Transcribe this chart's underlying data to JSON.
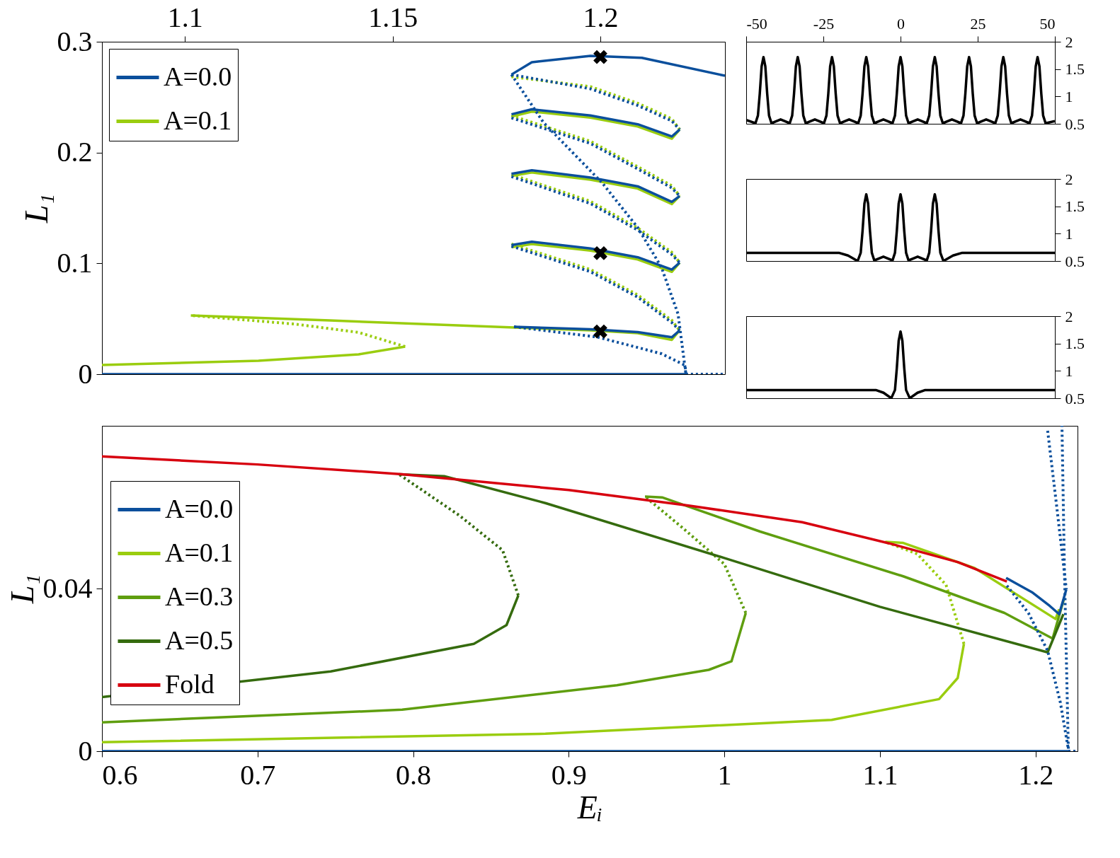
{
  "chart_data": [
    {
      "type": "line",
      "ylabel": "L₁",
      "xlim": [
        1.08,
        1.23
      ],
      "xticks": [
        1.1,
        1.15,
        1.2
      ],
      "ylim": [
        0,
        0.3
      ],
      "yticks": [
        0,
        0.1,
        0.2,
        0.3
      ],
      "legend": "top left",
      "grid": false,
      "series": [
        {
          "name": "A=0.0",
          "color": "#0b4f9c",
          "line_style": "solid",
          "x": [
            1.08,
            1.2206
          ],
          "values": [
            0,
            0
          ]
        },
        {
          "name": "A=0.1",
          "color": "#9acd0f",
          "line_style": "solid",
          "x": [
            1.08,
            1.1177,
            1.1418,
            1.153
          ],
          "values": [
            0.0083,
            0.0121,
            0.0179,
            0.0249
          ]
        },
        {
          "color": "#9acd0f",
          "line_style": "dotted",
          "x": [
            1.153,
            1.1418,
            1.1263,
            1.1014
          ],
          "values": [
            0.0249,
            0.0377,
            0.0453,
            0.053
          ]
        },
        {
          "color": "#9acd0f",
          "line_style": "solid",
          "x": [
            1.1014,
            1.1349,
            1.1792,
            1.1976,
            1.209,
            1.2172,
            1.2191
          ],
          "values": [
            0.053,
            0.0485,
            0.0421,
            0.0395,
            0.037,
            0.031,
            0.0396
          ]
        },
        {
          "color": "#9acd0f",
          "line_style": "dotted",
          "x": [
            1.1786,
            1.1976,
            1.209,
            1.2172,
            1.2191
          ],
          "values": [
            0.1175,
            0.0945,
            0.0715,
            0.0486,
            0.0396
          ]
        },
        {
          "color": "#9acd0f",
          "line_style": "solid",
          "x": [
            1.1786,
            1.1835,
            1.1976,
            1.209,
            1.2172,
            1.2191
          ],
          "values": [
            0.1145,
            0.1175,
            0.1115,
            0.1035,
            0.0924,
            0.1007
          ]
        },
        {
          "color": "#9acd0f",
          "line_style": "dotted",
          "x": [
            1.1786,
            1.1976,
            1.209,
            1.2172,
            1.2191
          ],
          "values": [
            0.1803,
            0.156,
            0.132,
            0.11,
            0.1007
          ]
        },
        {
          "color": "#9acd0f",
          "line_style": "solid",
          "x": [
            1.1786,
            1.1835,
            1.1976,
            1.209,
            1.2172,
            1.2191
          ],
          "values": [
            0.1788,
            0.182,
            0.1755,
            0.1675,
            0.1535,
            0.1608
          ]
        },
        {
          "color": "#9acd0f",
          "line_style": "dotted",
          "x": [
            1.1786,
            1.1976,
            1.209,
            1.2172,
            1.2191
          ],
          "values": [
            0.2333,
            0.2102,
            0.1872,
            0.1701,
            0.1608
          ]
        },
        {
          "color": "#9acd0f",
          "line_style": "solid",
          "x": [
            1.1786,
            1.1835,
            1.1976,
            1.209,
            1.2172,
            1.2191
          ],
          "values": [
            0.2325,
            0.237,
            0.2315,
            0.2235,
            0.2125,
            0.2208
          ]
        },
        {
          "color": "#9acd0f",
          "line_style": "dotted",
          "x": [
            1.1786,
            1.1976,
            1.209,
            1.2172,
            1.2191
          ],
          "values": [
            0.2684,
            0.2595,
            0.2445,
            0.2305,
            0.2208
          ]
        },
        {
          "color": "#0b4f9c",
          "line_style": "dotted",
          "x": [
            1.2206,
            1.23
          ],
          "values": [
            0,
            0
          ]
        },
        {
          "color": "#0b4f9c",
          "line_style": "solid",
          "x": [
            1.1792,
            1.1976,
            1.209,
            1.2172,
            1.2191
          ],
          "values": [
            0.0428,
            0.0405,
            0.038,
            0.0333,
            0.0396
          ]
        },
        {
          "color": "#0b4f9c",
          "line_style": "dotted",
          "x": [
            1.1786,
            1.1976,
            1.209,
            1.2172,
            1.2191
          ],
          "values": [
            0.1155,
            0.0925,
            0.0695,
            0.0466,
            0.0396
          ]
        },
        {
          "color": "#0b4f9c",
          "line_style": "solid",
          "x": [
            1.1786,
            1.1835,
            1.1976,
            1.209,
            1.2172,
            1.2191
          ],
          "values": [
            0.1165,
            0.1195,
            0.1135,
            0.1055,
            0.0944,
            0.1007
          ]
        },
        {
          "color": "#0b4f9c",
          "line_style": "dotted",
          "x": [
            1.1786,
            1.1976,
            1.209,
            1.2172,
            1.2191
          ],
          "values": [
            0.1783,
            0.154,
            0.13,
            0.108,
            0.1007
          ]
        },
        {
          "color": "#0b4f9c",
          "line_style": "solid",
          "x": [
            1.1786,
            1.1835,
            1.1976,
            1.209,
            1.2172,
            1.2191
          ],
          "values": [
            0.1808,
            0.184,
            0.1775,
            0.1695,
            0.1555,
            0.1608
          ]
        },
        {
          "color": "#0b4f9c",
          "line_style": "dotted",
          "x": [
            1.1786,
            1.1976,
            1.209,
            1.2172,
            1.2191
          ],
          "values": [
            0.2313,
            0.2082,
            0.1852,
            0.1681,
            0.1608
          ]
        },
        {
          "color": "#0b4f9c",
          "line_style": "solid",
          "x": [
            1.1786,
            1.1835,
            1.1976,
            1.209,
            1.2172,
            1.2191
          ],
          "values": [
            0.2345,
            0.239,
            0.2335,
            0.2255,
            0.2145,
            0.2208
          ]
        },
        {
          "color": "#0b4f9c",
          "line_style": "dotted",
          "x": [
            1.1786,
            1.1976,
            1.209,
            1.2172,
            1.2191
          ],
          "values": [
            0.2704,
            0.2575,
            0.2425,
            0.2285,
            0.2208
          ]
        },
        {
          "color": "#0b4f9c",
          "line_style": "solid",
          "x": [
            1.1786,
            1.1835,
            1.1976,
            1.21,
            1.23
          ],
          "values": [
            0.2704,
            0.2815,
            0.2872,
            0.2855,
            0.2693
          ]
        },
        {
          "color": "#0b4f9c",
          "line_style": "dotted",
          "x": [
            1.1786,
            1.1863,
            1.2005,
            1.209,
            1.2147,
            1.2187,
            1.2206
          ],
          "values": [
            0.2704,
            0.2271,
            0.1724,
            0.1323,
            0.0965,
            0.0544,
            0
          ]
        },
        {
          "color": "#0b4f9c",
          "line_style": "dotted",
          "x": [
            1.1792,
            1.1993,
            1.2147,
            1.2204,
            1.2206
          ],
          "values": [
            0.0428,
            0.0335,
            0.0185,
            0.008,
            0
          ]
        },
        {
          "type": "scatter",
          "marker": "cross",
          "color": "#000000",
          "x": [
            1.2,
            1.2,
            1.2
          ],
          "values": [
            0.2862,
            0.1092,
            0.0386
          ]
        }
      ]
    },
    {
      "type": "line",
      "xlim": [
        -50,
        50
      ],
      "xticks": [
        -50,
        -25,
        0,
        25,
        50
      ],
      "ylim": [
        0.5,
        2
      ],
      "yticks": [
        0.5,
        1,
        1.5,
        2
      ],
      "grid": false,
      "series": [
        {
          "color": "#000000",
          "x": [
            -50,
            -47.0,
            -46.2,
            -45.6,
            -45.0,
            -44.4,
            -43.8,
            -43.2,
            -42.6,
            -41.8,
            -38.85,
            -35.9,
            -35.1,
            -34.5,
            -33.9,
            -33.3,
            -32.7,
            -32.1,
            -31.5,
            -30.7,
            -27.75,
            -24.8,
            -24.0,
            -23.4,
            -22.8,
            -22.2,
            -21.6,
            -21.0,
            -20.4,
            -19.6,
            -16.65,
            -13.7,
            -12.9,
            -12.3,
            -11.7,
            -11.1,
            -10.5,
            -9.9,
            -9.3,
            -8.5,
            -5.55,
            -2.6,
            -1.8,
            -1.2,
            -0.6,
            0,
            0.6,
            1.2,
            1.8,
            2.6,
            5.55,
            8.5,
            9.3,
            9.9,
            10.5,
            11.1,
            11.7,
            12.3,
            12.9,
            13.7,
            16.65,
            19.6,
            20.4,
            21.0,
            21.6,
            22.2,
            22.8,
            23.4,
            24.0,
            24.8,
            27.75,
            30.7,
            31.5,
            32.1,
            32.7,
            33.3,
            33.9,
            34.5,
            35.1,
            35.9,
            38.85,
            41.8,
            42.6,
            43.2,
            43.8,
            44.4,
            45.0,
            45.6,
            46.2,
            47.0,
            50
          ],
          "values": [
            0.57,
            0.51,
            0.65,
            1.05,
            1.55,
            1.72,
            1.55,
            1.05,
            0.65,
            0.51,
            0.58,
            0.51,
            0.65,
            1.05,
            1.55,
            1.72,
            1.55,
            1.05,
            0.65,
            0.51,
            0.58,
            0.51,
            0.65,
            1.05,
            1.55,
            1.72,
            1.55,
            1.05,
            0.65,
            0.51,
            0.58,
            0.51,
            0.65,
            1.05,
            1.55,
            1.72,
            1.55,
            1.05,
            0.65,
            0.51,
            0.58,
            0.51,
            0.65,
            1.05,
            1.55,
            1.72,
            1.55,
            1.05,
            0.65,
            0.51,
            0.58,
            0.51,
            0.65,
            1.05,
            1.55,
            1.72,
            1.55,
            1.05,
            0.65,
            0.51,
            0.58,
            0.51,
            0.65,
            1.05,
            1.55,
            1.72,
            1.55,
            1.05,
            0.65,
            0.51,
            0.58,
            0.51,
            0.65,
            1.05,
            1.55,
            1.72,
            1.55,
            1.05,
            0.65,
            0.51,
            0.58,
            0.51,
            0.65,
            1.05,
            1.55,
            1.72,
            1.55,
            1.05,
            0.65,
            0.51,
            0.55
          ]
        }
      ]
    },
    {
      "type": "line",
      "xlim": [
        -50,
        50
      ],
      "xticks": [
        -50,
        -25,
        0,
        25,
        50
      ],
      "ylim": [
        0.5,
        2
      ],
      "yticks": [
        0.5,
        1,
        1.5,
        2
      ],
      "tick_labels": "y",
      "grid": false,
      "series": [
        {
          "color": "#000000",
          "x": [
            -50,
            -20,
            -17,
            -13.9,
            -12.9,
            -12.3,
            -11.7,
            -11.1,
            -10.5,
            -9.9,
            -9.3,
            -8.5,
            -5.55,
            -2.6,
            -1.8,
            -1.2,
            -0.6,
            0,
            0.6,
            1.2,
            1.8,
            2.6,
            5.55,
            8.5,
            9.3,
            9.9,
            10.5,
            11.1,
            11.7,
            12.3,
            12.9,
            13.9,
            17,
            20,
            50
          ],
          "values": [
            0.65,
            0.65,
            0.6,
            0.5,
            0.65,
            1.05,
            1.55,
            1.72,
            1.55,
            1.05,
            0.65,
            0.51,
            0.58,
            0.51,
            0.65,
            1.05,
            1.55,
            1.72,
            1.55,
            1.05,
            0.65,
            0.51,
            0.58,
            0.51,
            0.65,
            1.05,
            1.55,
            1.72,
            1.55,
            1.05,
            0.65,
            0.5,
            0.6,
            0.65,
            0.65
          ]
        }
      ]
    },
    {
      "type": "line",
      "xlim": [
        -50,
        50
      ],
      "xticks": [
        -50,
        -25,
        0,
        25,
        50
      ],
      "ylim": [
        0.5,
        2
      ],
      "yticks": [
        0.5,
        1,
        1.5,
        2
      ],
      "tick_labels": "y",
      "grid": false,
      "series": [
        {
          "color": "#000000",
          "x": [
            -50,
            -8,
            -5.5,
            -3.0,
            -1.8,
            -1.2,
            -0.6,
            0,
            0.6,
            1.2,
            1.8,
            3.0,
            5.5,
            8,
            50
          ],
          "values": [
            0.65,
            0.65,
            0.6,
            0.5,
            0.65,
            1.05,
            1.55,
            1.72,
            1.55,
            1.05,
            0.65,
            0.5,
            0.6,
            0.65,
            0.65
          ]
        }
      ]
    },
    {
      "type": "line",
      "xlabel": "Eᵢ",
      "ylabel": "L₁",
      "xlim": [
        0.6,
        1.227
      ],
      "xticks": [
        0.6,
        0.7,
        0.8,
        0.9,
        1,
        1.1,
        1.2
      ],
      "ylim": [
        0,
        0.08
      ],
      "yticks": [
        0,
        0.04
      ],
      "legend": "left",
      "grid": false,
      "series": [
        {
          "name": "A=0.0",
          "color": "#0b4f9c",
          "line_style": "solid",
          "x": [
            0.6,
            1.2211
          ],
          "values": [
            0,
            0
          ]
        },
        {
          "name": "A=0.1",
          "color": "#9acd0f",
          "line_style": "solid",
          "x": [
            0.6,
            0.885,
            1.069,
            1.138,
            1.15,
            1.154
          ],
          "values": [
            0.0022,
            0.0043,
            0.0077,
            0.0128,
            0.018,
            0.0264
          ]
        },
        {
          "color": "#9acd0f",
          "line_style": "dotted",
          "x": [
            1.154,
            1.1425,
            1.124,
            1.1034
          ],
          "values": [
            0.0264,
            0.0409,
            0.0485,
            0.0515
          ]
        },
        {
          "color": "#9acd0f",
          "line_style": "solid",
          "x": [
            1.1034,
            1.115,
            1.161,
            1.2129,
            1.2152
          ],
          "values": [
            0.0515,
            0.0512,
            0.045,
            0.0325,
            0.0349
          ]
        },
        {
          "name": "A=0.3",
          "color": "#5f9e0f",
          "line_style": "solid",
          "x": [
            0.6,
            0.793,
            0.931,
            0.99,
            1.0046,
            1.0138
          ],
          "values": [
            0.0071,
            0.0102,
            0.0162,
            0.02,
            0.0221,
            0.034
          ]
        },
        {
          "color": "#5f9e0f",
          "line_style": "dotted",
          "x": [
            1.0138,
            1.0,
            0.972,
            0.949
          ],
          "values": [
            0.034,
            0.046,
            0.0553,
            0.0626
          ]
        },
        {
          "color": "#5f9e0f",
          "line_style": "solid",
          "x": [
            0.949,
            0.96,
            1.023,
            1.115,
            1.18,
            1.211,
            1.2184
          ],
          "values": [
            0.0626,
            0.0624,
            0.054,
            0.043,
            0.034,
            0.0277,
            0.0376
          ]
        },
        {
          "name": "A=0.5",
          "color": "#356b0e",
          "line_style": "solid",
          "x": [
            0.6,
            0.747,
            0.839,
            0.86,
            0.8676
          ],
          "values": [
            0.0133,
            0.0196,
            0.0264,
            0.031,
            0.0383
          ]
        },
        {
          "color": "#356b0e",
          "line_style": "dotted",
          "x": [
            0.8676,
            0.8575,
            0.8299,
            0.7908
          ],
          "values": [
            0.0383,
            0.0494,
            0.0579,
            0.0681
          ]
        },
        {
          "color": "#356b0e",
          "line_style": "solid",
          "x": [
            0.7908,
            0.82,
            0.885,
            1.0,
            1.1,
            1.2078,
            1.2179
          ],
          "values": [
            0.0681,
            0.0676,
            0.061,
            0.0475,
            0.0355,
            0.0243,
            0.0337
          ]
        },
        {
          "name": "Fold",
          "color": "#d7000f",
          "line_style": "solid",
          "x": [
            0.6,
            0.7,
            0.793,
            0.9,
            0.977,
            1.05,
            1.106,
            1.15,
            1.1816
          ],
          "values": [
            0.0725,
            0.0705,
            0.0681,
            0.0642,
            0.0604,
            0.0563,
            0.0511,
            0.0465,
            0.0417
          ]
        },
        {
          "color": "#0b4f9c",
          "line_style": "dotted",
          "x": [
            1.2211,
            1.227
          ],
          "values": [
            0,
            0
          ]
        },
        {
          "color": "#0b4f9c",
          "line_style": "solid",
          "x": [
            1.1811,
            1.1977,
            1.2092,
            1.2152,
            1.2198
          ],
          "values": [
            0.0426,
            0.0391,
            0.0357,
            0.0337,
            0.0398
          ]
        },
        {
          "color": "#0b4f9c",
          "line_style": "dotted",
          "x": [
            1.1816,
            1.1954,
            1.2078,
            1.216,
            1.2211,
            1.2186,
            1.217
          ],
          "values": [
            0.0407,
            0.034,
            0.0247,
            0.0119,
            0.0005,
            0.0443,
            0.08
          ]
        },
        {
          "color": "#0b4f9c",
          "line_style": "dotted",
          "x": [
            1.2078,
            1.2138,
            1.2198
          ],
          "values": [
            0.0788,
            0.0596,
            0.0398
          ]
        }
      ]
    }
  ]
}
